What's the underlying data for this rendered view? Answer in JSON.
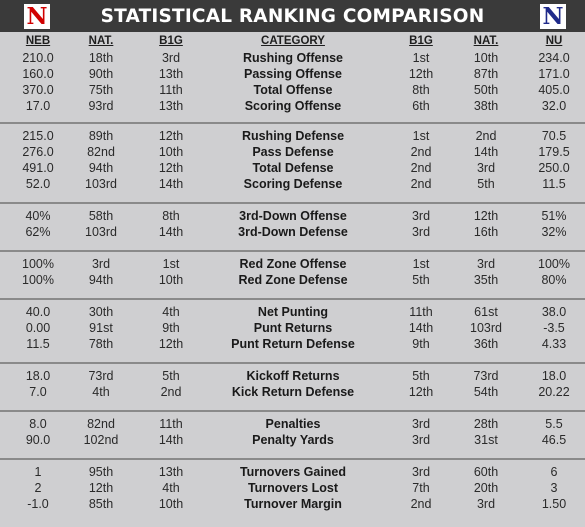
{
  "title": "STATISTICAL RANKING COMPARISON",
  "colors": {
    "title_bg": "#3a3a3a",
    "body_bg": "#cfcfd1",
    "neb_red": "#d00000",
    "nu_navy": "#1f2a8a",
    "separator": "#8a8a8a"
  },
  "logos": {
    "left": {
      "glyph": "N",
      "name": "nebraska-logo-icon"
    },
    "right": {
      "glyph": "N",
      "name": "northwestern-logo-icon"
    }
  },
  "headers": {
    "neb": "NEB",
    "neb_nat": "NAT.",
    "neb_b1g": "B1G",
    "category": "CATEGORY",
    "nu_b1g": "B1G",
    "nu_nat": "NAT.",
    "nu": "NU"
  },
  "sections": [
    {
      "rows": [
        {
          "neb": "210.0",
          "neb_nat": "18th",
          "neb_b1g": "3rd",
          "category": "Rushing Offense",
          "nu_b1g": "1st",
          "nu_nat": "10th",
          "nu": "234.0"
        },
        {
          "neb": "160.0",
          "neb_nat": "90th",
          "neb_b1g": "13th",
          "category": "Passing Offense",
          "nu_b1g": "12th",
          "nu_nat": "87th",
          "nu": "171.0"
        },
        {
          "neb": "370.0",
          "neb_nat": "75th",
          "neb_b1g": "11th",
          "category": "Total Offense",
          "nu_b1g": "8th",
          "nu_nat": "50th",
          "nu": "405.0"
        },
        {
          "neb": "17.0",
          "neb_nat": "93rd",
          "neb_b1g": "13th",
          "category": "Scoring Offense",
          "nu_b1g": "6th",
          "nu_nat": "38th",
          "nu": "32.0"
        }
      ]
    },
    {
      "rows": [
        {
          "neb": "215.0",
          "neb_nat": "89th",
          "neb_b1g": "12th",
          "category": "Rushing Defense",
          "nu_b1g": "1st",
          "nu_nat": "2nd",
          "nu": "70.5"
        },
        {
          "neb": "276.0",
          "neb_nat": "82nd",
          "neb_b1g": "10th",
          "category": "Pass Defense",
          "nu_b1g": "2nd",
          "nu_nat": "14th",
          "nu": "179.5"
        },
        {
          "neb": "491.0",
          "neb_nat": "94th",
          "neb_b1g": "12th",
          "category": "Total Defense",
          "nu_b1g": "2nd",
          "nu_nat": "3rd",
          "nu": "250.0"
        },
        {
          "neb": "52.0",
          "neb_nat": "103rd",
          "neb_b1g": "14th",
          "category": "Scoring Defense",
          "nu_b1g": "2nd",
          "nu_nat": "5th",
          "nu": "11.5"
        }
      ]
    },
    {
      "rows": [
        {
          "neb": "40%",
          "neb_nat": "58th",
          "neb_b1g": "8th",
          "category": "3rd-Down Offense",
          "nu_b1g": "3rd",
          "nu_nat": "12th",
          "nu": "51%"
        },
        {
          "neb": "62%",
          "neb_nat": "103rd",
          "neb_b1g": "14th",
          "category": "3rd-Down Defense",
          "nu_b1g": "3rd",
          "nu_nat": "16th",
          "nu": "32%"
        }
      ]
    },
    {
      "rows": [
        {
          "neb": "100%",
          "neb_nat": "3rd",
          "neb_b1g": "1st",
          "category": "Red Zone Offense",
          "nu_b1g": "1st",
          "nu_nat": "3rd",
          "nu": "100%"
        },
        {
          "neb": "100%",
          "neb_nat": "94th",
          "neb_b1g": "10th",
          "category": "Red Zone Defense",
          "nu_b1g": "5th",
          "nu_nat": "35th",
          "nu": "80%"
        }
      ]
    },
    {
      "rows": [
        {
          "neb": "40.0",
          "neb_nat": "30th",
          "neb_b1g": "4th",
          "category": "Net Punting",
          "nu_b1g": "11th",
          "nu_nat": "61st",
          "nu": "38.0"
        },
        {
          "neb": "0.00",
          "neb_nat": "91st",
          "neb_b1g": "9th",
          "category": "Punt Returns",
          "nu_b1g": "14th",
          "nu_nat": "103rd",
          "nu": "-3.5"
        },
        {
          "neb": "11.5",
          "neb_nat": "78th",
          "neb_b1g": "12th",
          "category": "Punt Return Defense",
          "nu_b1g": "9th",
          "nu_nat": "36th",
          "nu": "4.33"
        }
      ]
    },
    {
      "rows": [
        {
          "neb": "18.0",
          "neb_nat": "73rd",
          "neb_b1g": "5th",
          "category": "Kickoff Returns",
          "nu_b1g": "5th",
          "nu_nat": "73rd",
          "nu": "18.0"
        },
        {
          "neb": "7.0",
          "neb_nat": "4th",
          "neb_b1g": "2nd",
          "category": "Kick Return Defense",
          "nu_b1g": "12th",
          "nu_nat": "54th",
          "nu": "20.22"
        }
      ]
    },
    {
      "rows": [
        {
          "neb": "8.0",
          "neb_nat": "82nd",
          "neb_b1g": "11th",
          "category": "Penalties",
          "nu_b1g": "3rd",
          "nu_nat": "28th",
          "nu": "5.5"
        },
        {
          "neb": "90.0",
          "neb_nat": "102nd",
          "neb_b1g": "14th",
          "category": "Penalty Yards",
          "nu_b1g": "3rd",
          "nu_nat": "31st",
          "nu": "46.5"
        }
      ]
    },
    {
      "rows": [
        {
          "neb": "1",
          "neb_nat": "95th",
          "neb_b1g": "13th",
          "category": "Turnovers Gained",
          "nu_b1g": "3rd",
          "nu_nat": "60th",
          "nu": "6"
        },
        {
          "neb": "2",
          "neb_nat": "12th",
          "neb_b1g": "4th",
          "category": "Turnovers Lost",
          "nu_b1g": "7th",
          "nu_nat": "20th",
          "nu": "3"
        },
        {
          "neb": "-1.0",
          "neb_nat": "85th",
          "neb_b1g": "10th",
          "category": "Turnover Margin",
          "nu_b1g": "2nd",
          "nu_nat": "3rd",
          "nu": "1.50"
        }
      ]
    }
  ]
}
